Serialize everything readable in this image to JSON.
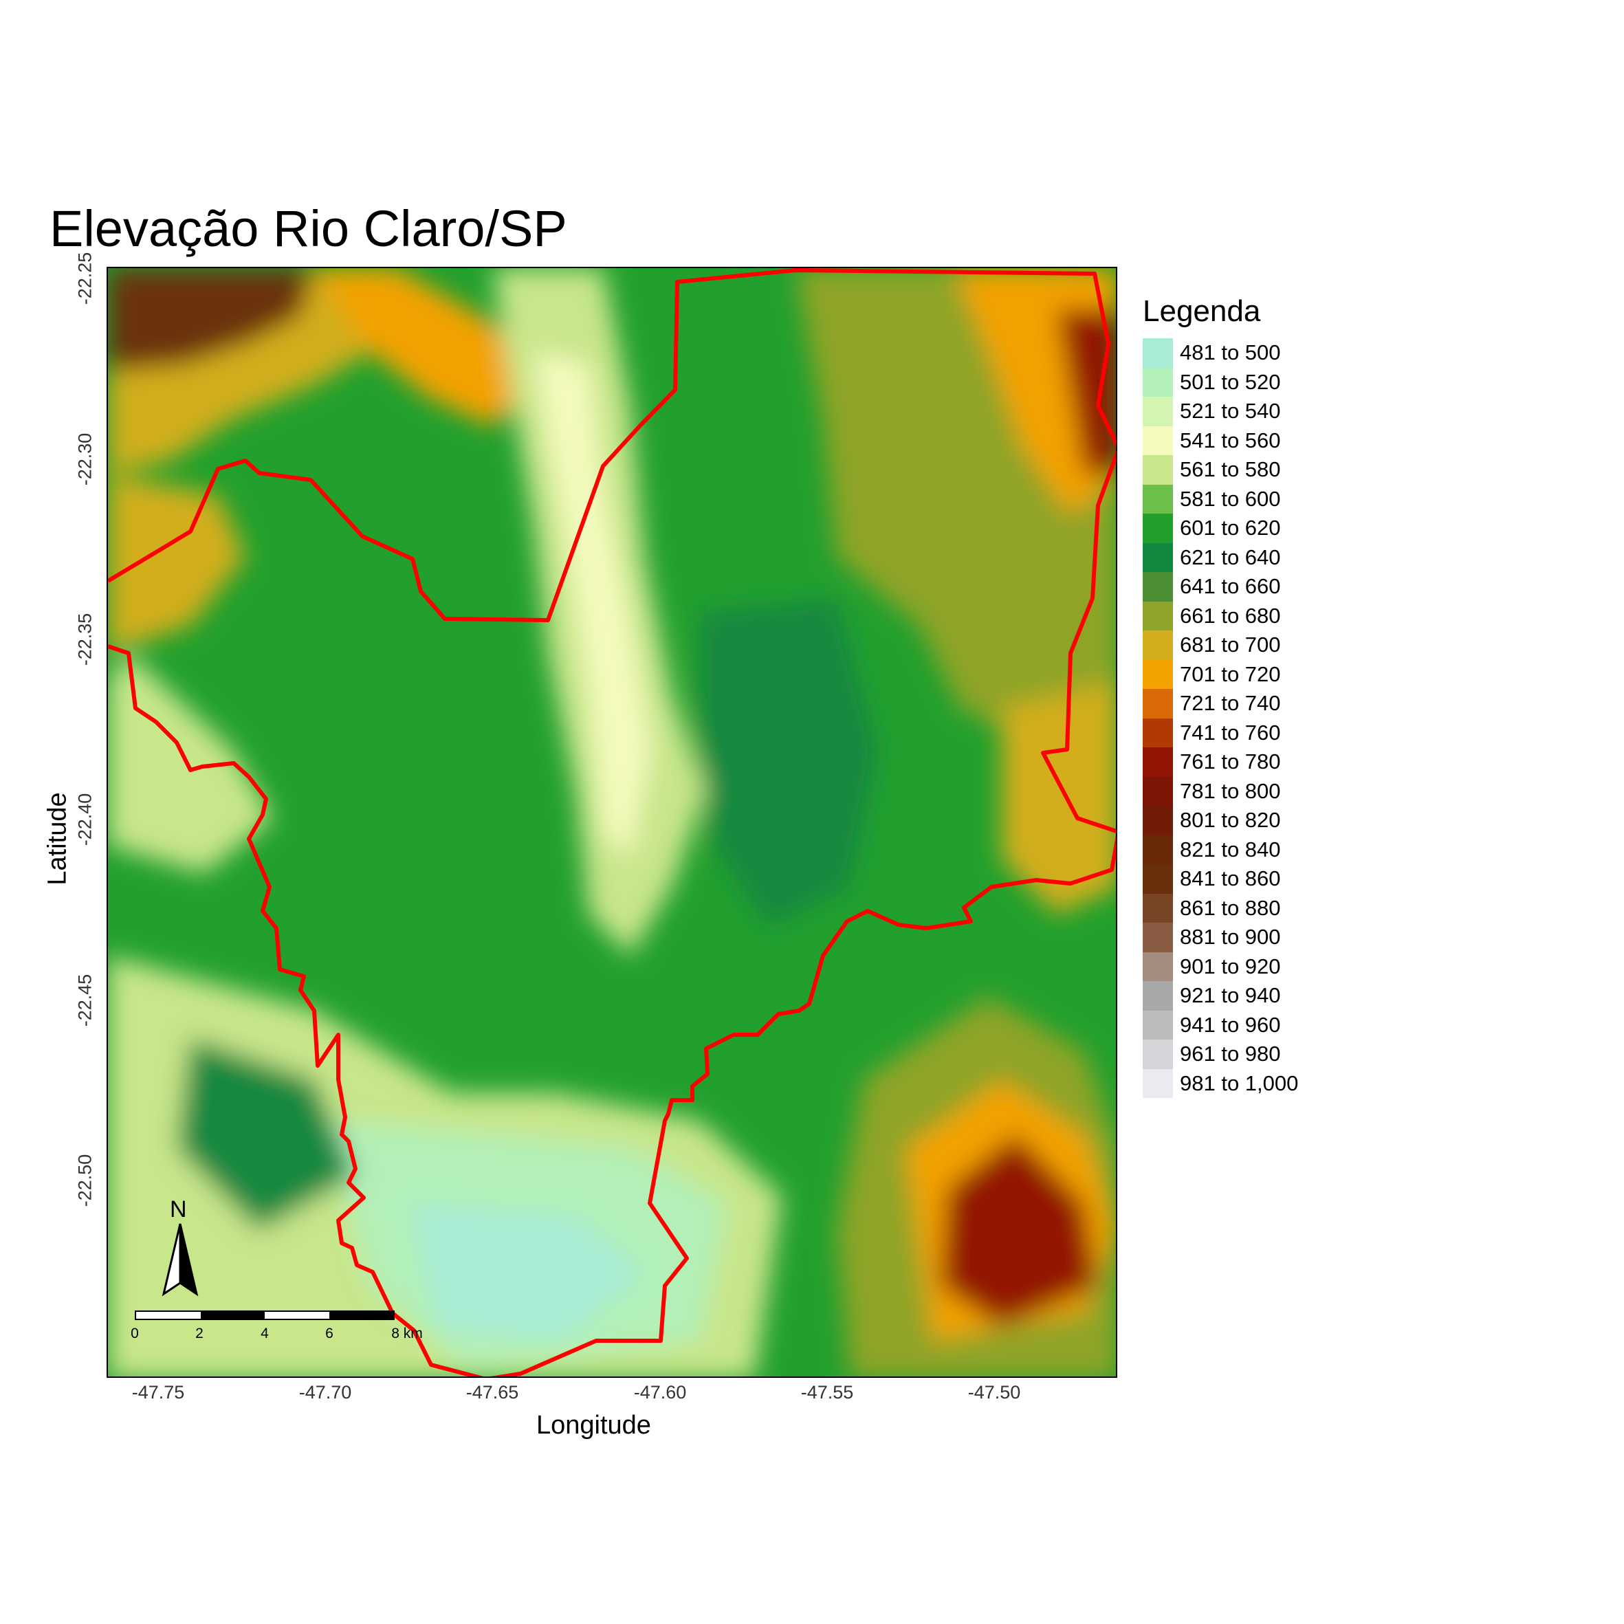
{
  "title": "Elevação Rio Claro/SP",
  "x_axis": {
    "title": "Longitude",
    "ticks": [
      "-47.75",
      "-47.70",
      "-47.65",
      "-47.60",
      "-47.55",
      "-47.50"
    ]
  },
  "y_axis": {
    "title": "Latitude",
    "ticks": [
      "-22.25",
      "-22.30",
      "-22.35",
      "-22.40",
      "-22.45",
      "-22.50"
    ]
  },
  "legend": {
    "title": "Legenda",
    "items": [
      {
        "label": "481 to 500",
        "color": "#a8ecd6"
      },
      {
        "label": "501 to 520",
        "color": "#b2f0b8"
      },
      {
        "label": "521 to 540",
        "color": "#d4f5b2"
      },
      {
        "label": "541 to 560",
        "color": "#f4fbbd"
      },
      {
        "label": "561 to 580",
        "color": "#c8e68a"
      },
      {
        "label": "581 to 600",
        "color": "#6cc04a"
      },
      {
        "label": "601 to 620",
        "color": "#22a02e"
      },
      {
        "label": "621 to 640",
        "color": "#138840"
      },
      {
        "label": "641 to 660",
        "color": "#4c8f35"
      },
      {
        "label": "661 to 680",
        "color": "#8fa428"
      },
      {
        "label": "681 to 700",
        "color": "#d2ae1c"
      },
      {
        "label": "701 to 720",
        "color": "#f3a200"
      },
      {
        "label": "721 to 740",
        "color": "#d86a08"
      },
      {
        "label": "741 to 760",
        "color": "#b03a06"
      },
      {
        "label": "761 to 780",
        "color": "#921404"
      },
      {
        "label": "781 to 800",
        "color": "#7e1404"
      },
      {
        "label": "801 to 820",
        "color": "#701c06"
      },
      {
        "label": "821 to 840",
        "color": "#692808"
      },
      {
        "label": "841 to 860",
        "color": "#6a300c"
      },
      {
        "label": "861 to 880",
        "color": "#774424"
      },
      {
        "label": "881 to 900",
        "color": "#8b5c44"
      },
      {
        "label": "901 to 920",
        "color": "#a28c80"
      },
      {
        "label": "921 to 940",
        "color": "#a8a8a8"
      },
      {
        "label": "941 to 960",
        "color": "#bcbcbc"
      },
      {
        "label": "961 to 980",
        "color": "#d6d4d8"
      },
      {
        "label": "981 to 1,000",
        "color": "#eceaf0"
      }
    ]
  },
  "north_arrow": {
    "label": "N",
    "icon": "north-arrow-icon"
  },
  "scale_bar": {
    "labels": [
      "0",
      "2",
      "4",
      "6",
      "8 km"
    ]
  },
  "boundary_color": "#ff0000"
}
